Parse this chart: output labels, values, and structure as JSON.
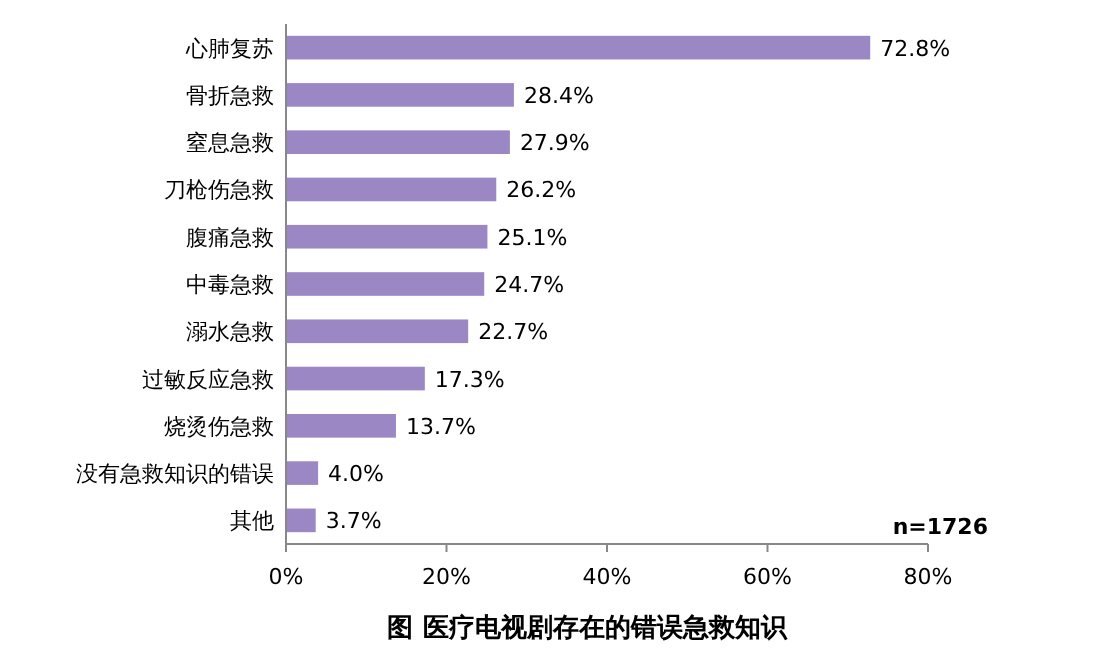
{
  "chart_data": {
    "type": "bar",
    "orientation": "horizontal",
    "xlabel": "图 医疗电视剧存在的错误急救知识",
    "categories": [
      "心肺复苏",
      "骨折急救",
      "窒息急救",
      "刀枪伤急救",
      "腹痛急救",
      "中毒急救",
      "溺水急救",
      "过敏反应急救",
      "烧烫伤急救",
      "没有急救知识的错误",
      "其他"
    ],
    "values": [
      72.8,
      28.4,
      27.9,
      26.2,
      25.1,
      24.7,
      22.7,
      17.3,
      13.7,
      4.0,
      3.7
    ],
    "value_labels": [
      "72.8%",
      "28.4%",
      "27.9%",
      "26.2%",
      "25.1%",
      "24.7%",
      "22.7%",
      "17.3%",
      "13.7%",
      "4.0%",
      "3.7%"
    ],
    "color": "#9b87c3",
    "xlim": [
      0,
      80
    ],
    "xticks": [
      {
        "value": 0,
        "label": "0%"
      },
      {
        "value": 20,
        "label": "20%"
      },
      {
        "value": 40,
        "label": "40%"
      },
      {
        "value": 60,
        "label": "60%"
      },
      {
        "value": 80,
        "label": "80%"
      }
    ],
    "annotations": [
      "n=1726"
    ],
    "grid": false
  }
}
